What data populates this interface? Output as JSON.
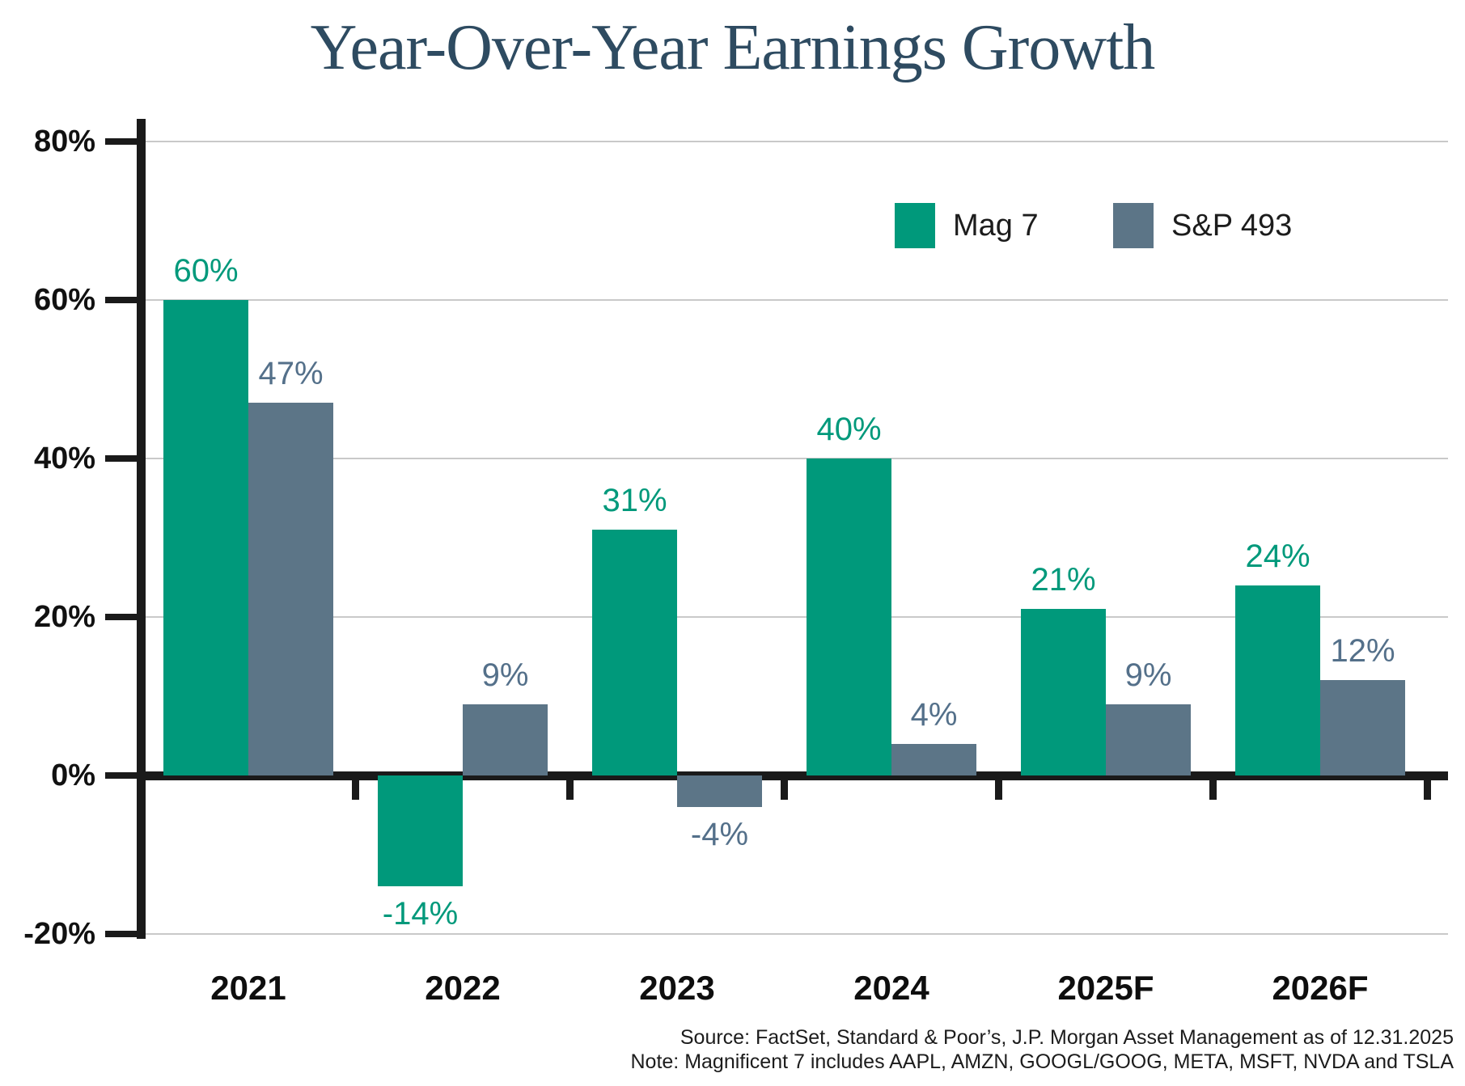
{
  "chart_data": {
    "type": "bar",
    "title": "Year-Over-Year Earnings Growth",
    "categories": [
      "2021",
      "2022",
      "2023",
      "2024",
      "2025F",
      "2026F"
    ],
    "series": [
      {
        "name": "Mag 7",
        "color": "#00997B",
        "label_color": "#00997B",
        "values": [
          60,
          -14,
          31,
          40,
          21,
          24
        ]
      },
      {
        "name": "S&P 493",
        "color": "#5C7587",
        "label_color": "#54708A",
        "values": [
          47,
          9,
          -4,
          4,
          9,
          12
        ]
      }
    ],
    "ylim": [
      -20,
      80
    ],
    "yticks": [
      {
        "value": 80,
        "label": "80%"
      },
      {
        "value": 60,
        "label": "60%"
      },
      {
        "value": 40,
        "label": "40%"
      },
      {
        "value": 20,
        "label": "20%"
      },
      {
        "value": 0,
        "label": "0%"
      },
      {
        "value": -20,
        "label": "-20%"
      }
    ],
    "value_label_suffix": "%",
    "grid": true,
    "legend_position": "top-right"
  },
  "title_color": "#2E4B61",
  "footer": {
    "source": "Source: FactSet, Standard & Poor’s, J.P. Morgan Asset Management as of 12.31.2025",
    "note": "Note: Magnificent 7 includes AAPL, AMZN, GOOGL/GOOG, META, MSFT, NVDA and TSLA"
  }
}
